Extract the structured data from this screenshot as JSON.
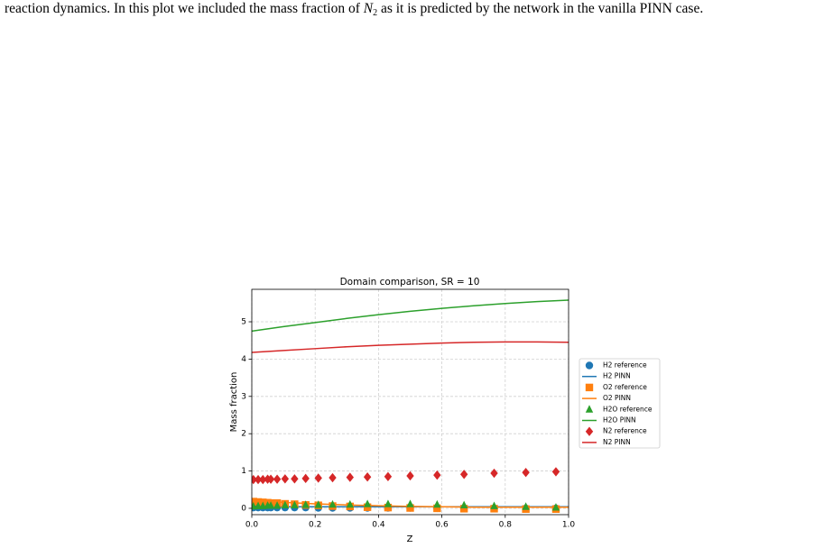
{
  "paragraph": {
    "before": "reaction dynamics. In this plot we included the mass fraction of ",
    "math": "N",
    "subscript": "2",
    "after": " as it is predicted by the network in the vanilla PINN case."
  },
  "chart_data": {
    "type": "line",
    "title": "Domain comparison, SR = 10",
    "x_label": "Z",
    "y_label": "Mass fraction",
    "xlim": [
      0,
      1
    ],
    "ylim": [
      -0.17,
      5.87
    ],
    "xticks": [
      {
        "value": 0,
        "label": "0.0"
      },
      0.2,
      0.4,
      0.6,
      0.8,
      {
        "value": 1,
        "label": "1.0"
      }
    ],
    "yticks": [
      0,
      1,
      2,
      3,
      4,
      5
    ],
    "grid": true,
    "legend": "outside right",
    "series": [
      {
        "name": "H2 reference",
        "color": "#1f77b4",
        "marker": "circle",
        "x": [
          0.005,
          0.02,
          0.035,
          0.05,
          0.06,
          0.08,
          0.105,
          0.135,
          0.17,
          0.21,
          0.255,
          0.31,
          0.365,
          0.43,
          0.5,
          0.585,
          0.67,
          0.765,
          0.865,
          0.96
        ],
        "values": [
          0.02,
          0.02,
          0.02,
          0.02,
          0.02,
          0.02,
          0.02,
          0.02,
          0.02,
          0.01,
          0.01,
          0.01,
          0.01,
          0.01,
          0.01,
          0.0,
          0.0,
          0.0,
          0.0,
          0.0
        ]
      },
      {
        "name": "H2 PINN",
        "color": "#1f77b4",
        "x": [
          0,
          0.1,
          0.2,
          0.3,
          0.4,
          0.5,
          0.6,
          0.7,
          0.8,
          0.9,
          1
        ],
        "values": [
          0.04,
          0.04,
          0.04,
          0.04,
          0.04,
          0.04,
          0.04,
          0.04,
          0.04,
          0.04,
          0.04
        ]
      },
      {
        "name": "O2 reference",
        "color": "#ff7f0e",
        "marker": "square",
        "x": [
          0.005,
          0.02,
          0.035,
          0.05,
          0.06,
          0.08,
          0.105,
          0.135,
          0.17,
          0.21,
          0.255,
          0.31,
          0.365,
          0.43,
          0.5,
          0.585,
          0.67,
          0.765,
          0.865,
          0.96
        ],
        "values": [
          0.18,
          0.17,
          0.16,
          0.15,
          0.14,
          0.14,
          0.12,
          0.11,
          0.09,
          0.08,
          0.06,
          0.05,
          0.03,
          0.02,
          0.01,
          0.0,
          -0.01,
          -0.01,
          -0.02,
          -0.02
        ]
      },
      {
        "name": "O2 PINN",
        "color": "#ff7f0e",
        "x": [
          0,
          0.1,
          0.2,
          0.3,
          0.4,
          0.5,
          0.6,
          0.7,
          0.8,
          0.9,
          1
        ],
        "values": [
          0.2,
          0.16,
          0.12,
          0.09,
          0.07,
          0.05,
          0.04,
          0.03,
          0.03,
          0.03,
          0.03
        ]
      },
      {
        "name": "H2O reference",
        "color": "#2ca02c",
        "marker": "triangle",
        "x": [
          0.005,
          0.02,
          0.035,
          0.05,
          0.06,
          0.08,
          0.105,
          0.135,
          0.17,
          0.21,
          0.255,
          0.31,
          0.365,
          0.43,
          0.5,
          0.585,
          0.67,
          0.765,
          0.865,
          0.96
        ],
        "values": [
          0.05,
          0.06,
          0.06,
          0.07,
          0.07,
          0.07,
          0.08,
          0.08,
          0.09,
          0.09,
          0.1,
          0.1,
          0.11,
          0.11,
          0.11,
          0.1,
          0.08,
          0.06,
          0.04,
          0.02
        ]
      },
      {
        "name": "H2O PINN",
        "color": "#2ca02c",
        "x": [
          0,
          0.1,
          0.2,
          0.3,
          0.4,
          0.5,
          0.6,
          0.7,
          0.8,
          0.9,
          1
        ],
        "values": [
          4.75,
          4.87,
          4.98,
          5.09,
          5.19,
          5.28,
          5.36,
          5.43,
          5.49,
          5.54,
          5.58
        ]
      },
      {
        "name": "N2 reference",
        "color": "#d62728",
        "marker": "diamond",
        "x": [
          0.005,
          0.02,
          0.035,
          0.05,
          0.06,
          0.08,
          0.105,
          0.135,
          0.17,
          0.21,
          0.255,
          0.31,
          0.365,
          0.43,
          0.5,
          0.585,
          0.67,
          0.765,
          0.865,
          0.96
        ],
        "values": [
          0.77,
          0.77,
          0.77,
          0.78,
          0.78,
          0.78,
          0.79,
          0.79,
          0.8,
          0.81,
          0.82,
          0.83,
          0.84,
          0.85,
          0.87,
          0.89,
          0.91,
          0.94,
          0.96,
          0.98
        ]
      },
      {
        "name": "N2 PINN",
        "color": "#d62728",
        "x": [
          0,
          0.1,
          0.2,
          0.3,
          0.4,
          0.5,
          0.6,
          0.7,
          0.8,
          0.9,
          1
        ],
        "values": [
          4.18,
          4.23,
          4.28,
          4.33,
          4.37,
          4.4,
          4.43,
          4.45,
          4.46,
          4.46,
          4.45
        ]
      }
    ]
  }
}
